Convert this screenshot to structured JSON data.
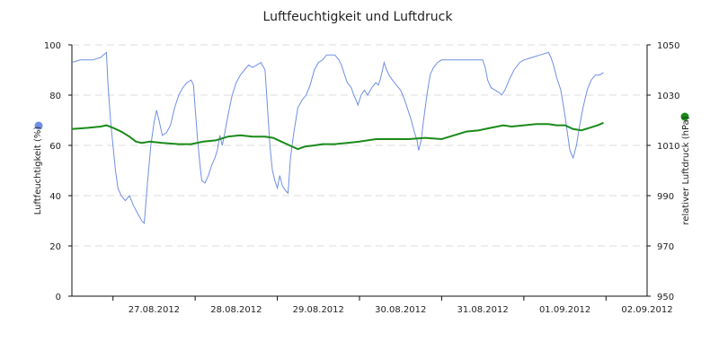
{
  "chart_data": {
    "type": "line",
    "title": "Luftfeuchtigkeit und Luftdruck",
    "x_tick_labels": [
      "27.08.2012",
      "28.08.2012",
      "29.08.2012",
      "30.08.2012",
      "31.08.2012",
      "01.09.2012",
      "02.09.2012"
    ],
    "y_left": {
      "label": "Luftfeuchtigkeit (%)",
      "ticks": [
        "0",
        "20",
        "40",
        "60",
        "80",
        "100"
      ],
      "ylim": [
        0,
        100
      ]
    },
    "y_right": {
      "label": "relativer Luftdruck (hPa)",
      "ticks": [
        "950",
        "970",
        "990",
        "1010",
        "1030",
        "1050"
      ],
      "ylim": [
        950,
        1050
      ]
    },
    "grid": true,
    "x_unit": "days since 26.08.2012 00:00",
    "xlim": [
      0.5,
      7.5
    ],
    "series": [
      {
        "name": "Luftfeuchtigkeit (%)",
        "axis": "left",
        "color": "#6f8fe3",
        "points": [
          [
            0.5,
            93
          ],
          [
            0.6,
            94
          ],
          [
            0.75,
            94
          ],
          [
            0.85,
            95
          ],
          [
            0.92,
            97
          ],
          [
            0.94,
            84
          ],
          [
            0.97,
            70
          ],
          [
            1.0,
            60
          ],
          [
            1.03,
            50
          ],
          [
            1.06,
            43
          ],
          [
            1.1,
            40
          ],
          [
            1.15,
            38
          ],
          [
            1.2,
            40
          ],
          [
            1.25,
            36
          ],
          [
            1.3,
            33
          ],
          [
            1.35,
            30
          ],
          [
            1.38,
            29
          ],
          [
            1.42,
            45
          ],
          [
            1.46,
            60
          ],
          [
            1.5,
            69
          ],
          [
            1.53,
            74
          ],
          [
            1.56,
            70
          ],
          [
            1.6,
            64
          ],
          [
            1.65,
            65
          ],
          [
            1.7,
            68
          ],
          [
            1.75,
            75
          ],
          [
            1.8,
            80
          ],
          [
            1.85,
            83
          ],
          [
            1.9,
            85
          ],
          [
            1.95,
            86
          ],
          [
            1.98,
            84
          ],
          [
            2.0,
            75
          ],
          [
            2.03,
            62
          ],
          [
            2.06,
            52
          ],
          [
            2.08,
            46
          ],
          [
            2.12,
            45
          ],
          [
            2.16,
            48
          ],
          [
            2.2,
            52
          ],
          [
            2.24,
            55
          ],
          [
            2.27,
            58
          ],
          [
            2.3,
            64
          ],
          [
            2.33,
            60
          ],
          [
            2.36,
            65
          ],
          [
            2.4,
            72
          ],
          [
            2.45,
            80
          ],
          [
            2.5,
            85
          ],
          [
            2.55,
            88
          ],
          [
            2.6,
            90
          ],
          [
            2.65,
            92
          ],
          [
            2.7,
            91
          ],
          [
            2.75,
            92
          ],
          [
            2.8,
            93
          ],
          [
            2.85,
            90
          ],
          [
            2.88,
            75
          ],
          [
            2.91,
            60
          ],
          [
            2.94,
            50
          ],
          [
            2.97,
            46
          ],
          [
            3.0,
            43
          ],
          [
            3.03,
            48
          ],
          [
            3.06,
            44
          ],
          [
            3.1,
            42
          ],
          [
            3.13,
            41
          ],
          [
            3.16,
            55
          ],
          [
            3.2,
            65
          ],
          [
            3.25,
            75
          ],
          [
            3.3,
            78
          ],
          [
            3.35,
            80
          ],
          [
            3.4,
            84
          ],
          [
            3.45,
            90
          ],
          [
            3.5,
            93
          ],
          [
            3.55,
            94
          ],
          [
            3.6,
            96
          ],
          [
            3.7,
            96
          ],
          [
            3.75,
            94
          ],
          [
            3.78,
            92
          ],
          [
            3.82,
            88
          ],
          [
            3.85,
            85
          ],
          [
            3.9,
            83
          ],
          [
            3.93,
            80
          ],
          [
            3.96,
            78
          ],
          [
            3.98,
            76
          ],
          [
            4.02,
            80
          ],
          [
            4.06,
            82
          ],
          [
            4.1,
            80
          ],
          [
            4.15,
            83
          ],
          [
            4.2,
            85
          ],
          [
            4.23,
            84
          ],
          [
            4.25,
            86
          ],
          [
            4.28,
            90
          ],
          [
            4.3,
            93
          ],
          [
            4.33,
            90
          ],
          [
            4.36,
            88
          ],
          [
            4.4,
            86
          ],
          [
            4.45,
            84
          ],
          [
            4.5,
            82
          ],
          [
            4.55,
            78
          ],
          [
            4.6,
            73
          ],
          [
            4.63,
            70
          ],
          [
            4.67,
            65
          ],
          [
            4.7,
            62
          ],
          [
            4.72,
            58
          ],
          [
            4.75,
            62
          ],
          [
            4.78,
            70
          ],
          [
            4.82,
            80
          ],
          [
            4.86,
            88
          ],
          [
            4.9,
            91
          ],
          [
            4.95,
            93
          ],
          [
            5.0,
            94
          ],
          [
            5.2,
            94
          ],
          [
            5.5,
            94
          ],
          [
            5.53,
            91
          ],
          [
            5.56,
            86
          ],
          [
            5.6,
            83
          ],
          [
            5.65,
            82
          ],
          [
            5.7,
            81
          ],
          [
            5.73,
            80
          ],
          [
            5.77,
            82
          ],
          [
            5.82,
            86
          ],
          [
            5.88,
            90
          ],
          [
            5.95,
            93
          ],
          [
            6.0,
            94
          ],
          [
            6.1,
            95
          ],
          [
            6.2,
            96
          ],
          [
            6.3,
            97
          ],
          [
            6.33,
            95
          ],
          [
            6.36,
            92
          ],
          [
            6.4,
            87
          ],
          [
            6.45,
            82
          ],
          [
            6.5,
            72
          ],
          [
            6.53,
            65
          ],
          [
            6.56,
            58
          ],
          [
            6.6,
            55
          ],
          [
            6.64,
            60
          ],
          [
            6.68,
            68
          ],
          [
            6.72,
            75
          ],
          [
            6.77,
            82
          ],
          [
            6.82,
            86
          ],
          [
            6.87,
            88
          ],
          [
            6.92,
            88
          ],
          [
            6.97,
            89
          ]
        ]
      },
      {
        "name": "relativer Luftdruck (hPa)",
        "axis": "right",
        "color": "#1a8a1a",
        "points": [
          [
            0.5,
            1016.5
          ],
          [
            0.7,
            1017
          ],
          [
            0.85,
            1017.5
          ],
          [
            0.92,
            1018
          ],
          [
            1.0,
            1017
          ],
          [
            1.1,
            1015.5
          ],
          [
            1.2,
            1013.5
          ],
          [
            1.28,
            1011.5
          ],
          [
            1.35,
            1011
          ],
          [
            1.45,
            1011.5
          ],
          [
            1.6,
            1011
          ],
          [
            1.8,
            1010.5
          ],
          [
            1.95,
            1010.5
          ],
          [
            2.1,
            1011.5
          ],
          [
            2.25,
            1012
          ],
          [
            2.4,
            1013.5
          ],
          [
            2.55,
            1014
          ],
          [
            2.7,
            1013.5
          ],
          [
            2.85,
            1013.5
          ],
          [
            2.95,
            1013
          ],
          [
            3.05,
            1011.5
          ],
          [
            3.15,
            1010
          ],
          [
            3.25,
            1008.5
          ],
          [
            3.33,
            1009.5
          ],
          [
            3.45,
            1010
          ],
          [
            3.55,
            1010.5
          ],
          [
            3.7,
            1010.5
          ],
          [
            3.85,
            1011
          ],
          [
            4.0,
            1011.5
          ],
          [
            4.2,
            1012.5
          ],
          [
            4.4,
            1012.5
          ],
          [
            4.6,
            1012.5
          ],
          [
            4.8,
            1013
          ],
          [
            5.0,
            1012.5
          ],
          [
            5.15,
            1014
          ],
          [
            5.3,
            1015.5
          ],
          [
            5.45,
            1016
          ],
          [
            5.6,
            1017
          ],
          [
            5.75,
            1018
          ],
          [
            5.85,
            1017.5
          ],
          [
            6.0,
            1018
          ],
          [
            6.15,
            1018.5
          ],
          [
            6.3,
            1018.5
          ],
          [
            6.4,
            1018
          ],
          [
            6.5,
            1018
          ],
          [
            6.6,
            1016.5
          ],
          [
            6.7,
            1016
          ],
          [
            6.8,
            1017
          ],
          [
            6.9,
            1018
          ],
          [
            6.97,
            1019
          ]
        ]
      }
    ]
  }
}
